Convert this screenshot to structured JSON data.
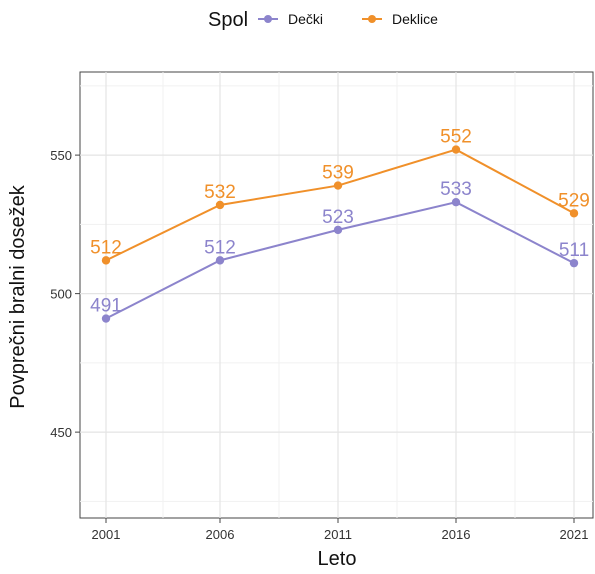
{
  "chart_data": {
    "type": "line",
    "title": "",
    "xlabel": "Leto",
    "ylabel": "Povprečni bralni dosežek",
    "x": [
      2001,
      2006,
      2011,
      2016,
      2021
    ],
    "x_tick_labels": [
      "2001",
      "2006",
      "2011",
      "2016",
      "2021"
    ],
    "y_ticks": [
      450,
      500,
      550
    ],
    "ylim": [
      419,
      580
    ],
    "grid": true,
    "legend": {
      "title": "Spol",
      "position": "top"
    },
    "series": [
      {
        "name": "Dečki",
        "color": "#8c84cc",
        "values": [
          491,
          512,
          523,
          533,
          511
        ],
        "labels": [
          "491",
          "512",
          "523",
          "533",
          "511"
        ]
      },
      {
        "name": "Deklice",
        "color": "#f0902a",
        "values": [
          512,
          532,
          539,
          552,
          529
        ],
        "labels": [
          "512",
          "532",
          "539",
          "552",
          "529"
        ]
      }
    ]
  }
}
